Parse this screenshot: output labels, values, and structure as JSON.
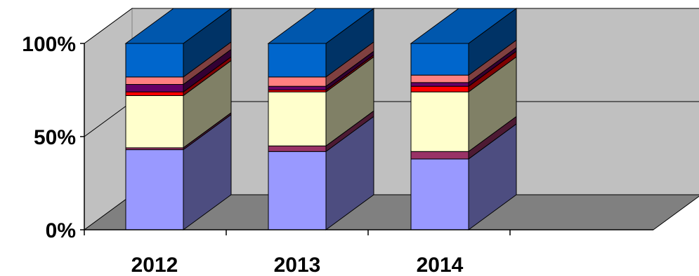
{
  "chart_data": {
    "type": "bar",
    "stacked": "percent",
    "three_d": true,
    "categories": [
      "2012",
      "2013",
      "2014"
    ],
    "yticks": [
      "0%",
      "50%",
      "100%"
    ],
    "ylim": [
      0,
      100
    ],
    "legend": "none",
    "grid": true,
    "series": [
      {
        "color": "#9999FF",
        "values": [
          43,
          42,
          38
        ]
      },
      {
        "color": "#993366",
        "values": [
          1,
          3,
          4
        ]
      },
      {
        "color": "#FFFFCC",
        "values": [
          28,
          29,
          32
        ]
      },
      {
        "color": "#FF0000",
        "values": [
          2,
          1,
          3
        ]
      },
      {
        "color": "#660066",
        "values": [
          4,
          2,
          2
        ]
      },
      {
        "color": "#FF8080",
        "values": [
          4,
          5,
          4
        ]
      },
      {
        "color": "#0066CC",
        "values": [
          18,
          18,
          17
        ]
      }
    ]
  }
}
